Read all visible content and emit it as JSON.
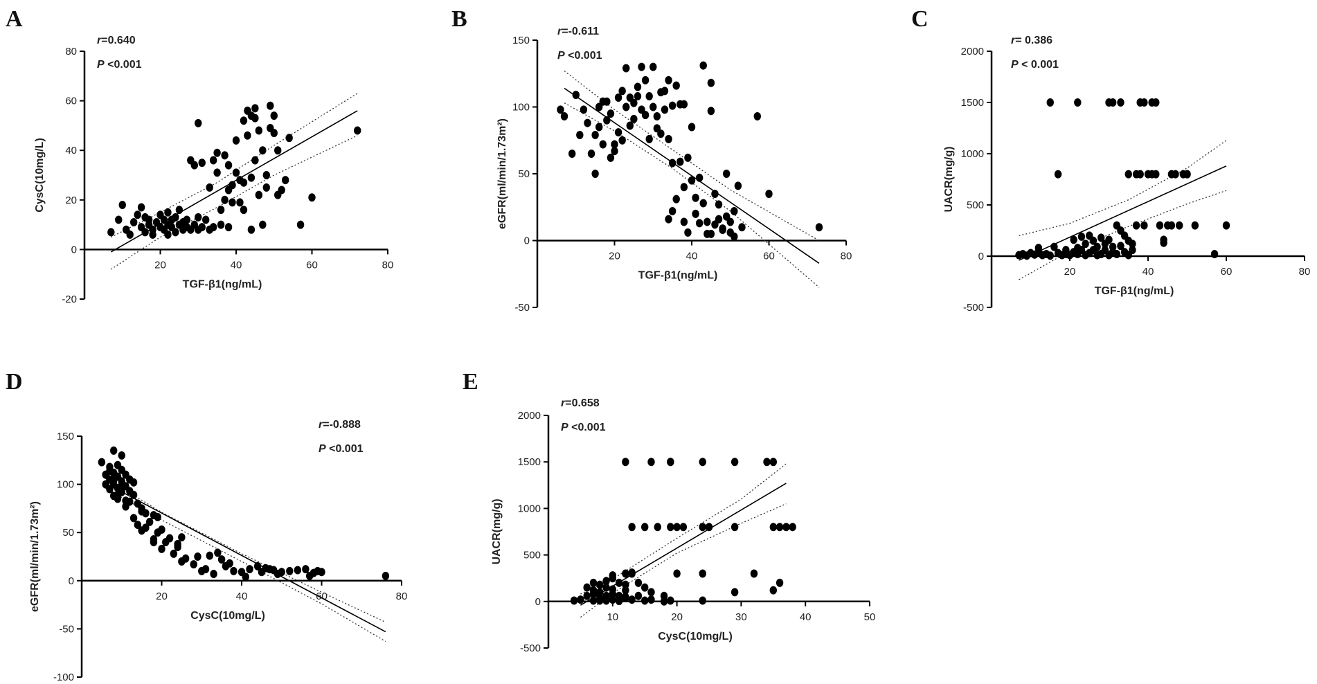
{
  "figure": {
    "panels": [
      "A",
      "B",
      "C",
      "D",
      "E"
    ]
  },
  "chart_data": [
    {
      "panel": "A",
      "type": "scatter",
      "xlabel": "TGF-β1(ng/mL)",
      "ylabel": "CysC(10mg/L)",
      "xlim": [
        0,
        80
      ],
      "ylim": [
        -20,
        80
      ],
      "xticks": [
        20,
        40,
        60,
        80
      ],
      "yticks": [
        -20,
        0,
        20,
        40,
        60,
        80
      ],
      "r_label": "r",
      "r_value": "=0.640",
      "p_label": "P",
      "p_value": " <0.001",
      "regression": {
        "x1": 7,
        "y1": -1,
        "x2": 72,
        "y2": 56
      },
      "ci_upper": [
        [
          7,
          5
        ],
        [
          20,
          15
        ],
        [
          35,
          27
        ],
        [
          50,
          42
        ],
        [
          72,
          63
        ]
      ],
      "ci_lower": [
        [
          7,
          -8
        ],
        [
          20,
          5
        ],
        [
          35,
          17
        ],
        [
          50,
          30
        ],
        [
          72,
          46
        ]
      ],
      "x": [
        7,
        9,
        10,
        11,
        12,
        13,
        14,
        15,
        15,
        16,
        16,
        17,
        17,
        18,
        18,
        19,
        20,
        20,
        21,
        21,
        22,
        22,
        22,
        23,
        23,
        24,
        24,
        25,
        25,
        26,
        26,
        27,
        27,
        28,
        28,
        29,
        29,
        30,
        30,
        31,
        31,
        32,
        33,
        33,
        34,
        34,
        35,
        35,
        36,
        36,
        37,
        37,
        38,
        38,
        38,
        39,
        39,
        40,
        40,
        41,
        41,
        42,
        42,
        42,
        43,
        43,
        44,
        44,
        44,
        45,
        45,
        46,
        46,
        47,
        47,
        48,
        48,
        49,
        49,
        50,
        50,
        51,
        51,
        52,
        53,
        54,
        57,
        60,
        72,
        30,
        45
      ],
      "y": [
        7,
        12,
        18,
        8,
        6,
        11,
        14,
        17,
        9,
        13,
        7,
        10,
        12,
        6,
        8,
        11,
        9,
        14,
        12,
        8,
        10,
        15,
        6,
        9,
        12,
        7,
        13,
        10,
        16,
        8,
        11,
        9,
        12,
        36,
        8,
        34,
        10,
        8,
        13,
        35,
        9,
        12,
        25,
        8,
        36,
        9,
        31,
        39,
        10,
        16,
        38,
        20,
        9,
        34,
        24,
        26,
        19,
        44,
        31,
        28,
        19,
        52,
        16,
        27,
        56,
        46,
        54,
        29,
        8,
        57,
        36,
        48,
        22,
        10,
        40,
        30,
        25,
        49,
        58,
        54,
        47,
        40,
        22,
        24,
        28,
        45,
        10,
        21,
        48,
        51,
        53
      ]
    },
    {
      "panel": "B",
      "type": "scatter",
      "xlabel": "TGF-β1(ng/mL)",
      "ylabel": "eGFR(ml/min/1.73m²)",
      "xlim": [
        0,
        80
      ],
      "ylim": [
        -50,
        150
      ],
      "xticks": [
        20,
        40,
        60,
        80
      ],
      "yticks": [
        -50,
        0,
        50,
        100,
        150
      ],
      "r_label": "r",
      "r_value": "=-0.611",
      "p_label": "P",
      "p_value": " <0.001",
      "regression": {
        "x1": 7,
        "y1": 114,
        "x2": 73,
        "y2": -17
      },
      "ci_upper": [
        [
          7,
          127
        ],
        [
          20,
          98
        ],
        [
          35,
          68
        ],
        [
          50,
          38
        ],
        [
          73,
          0
        ]
      ],
      "ci_lower": [
        [
          7,
          103
        ],
        [
          20,
          82
        ],
        [
          35,
          54
        ],
        [
          50,
          22
        ],
        [
          73,
          -35
        ]
      ],
      "x": [
        6,
        7,
        9,
        10,
        11,
        12,
        13,
        14,
        15,
        15,
        16,
        16,
        17,
        17,
        18,
        18,
        19,
        19,
        20,
        20,
        21,
        21,
        22,
        22,
        23,
        23,
        24,
        24,
        25,
        25,
        26,
        26,
        27,
        27,
        28,
        28,
        29,
        29,
        30,
        30,
        31,
        31,
        32,
        32,
        33,
        33,
        34,
        34,
        35,
        35,
        35,
        36,
        36,
        37,
        37,
        38,
        38,
        38,
        39,
        39,
        40,
        40,
        41,
        41,
        42,
        42,
        43,
        43,
        44,
        44,
        45,
        45,
        46,
        46,
        47,
        47,
        48,
        48,
        49,
        49,
        50,
        50,
        51,
        51,
        52,
        53,
        57,
        60,
        73,
        34,
        45
      ],
      "y": [
        98,
        93,
        65,
        109,
        79,
        98,
        88,
        65,
        50,
        79,
        100,
        85,
        72,
        104,
        90,
        104,
        95,
        62,
        67,
        72,
        81,
        107,
        112,
        75,
        100,
        129,
        107,
        86,
        91,
        103,
        108,
        115,
        130,
        98,
        94,
        120,
        108,
        76,
        100,
        130,
        93,
        84,
        111,
        80,
        98,
        112,
        76,
        120,
        58,
        22,
        101,
        116,
        31,
        102,
        59,
        102,
        14,
        40,
        62,
        6,
        45,
        85,
        20,
        32,
        13,
        47,
        28,
        131,
        14,
        5,
        97,
        118,
        35,
        12,
        16,
        27,
        9,
        8,
        18,
        50,
        6,
        14,
        22,
        3,
        41,
        10,
        93,
        35,
        10,
        16,
        5
      ]
    },
    {
      "panel": "C",
      "type": "scatter",
      "xlabel": "TGF-β1(ng/mL)",
      "ylabel": "UACR(mg/g)",
      "xlim": [
        0,
        80
      ],
      "ylim": [
        -500,
        2000
      ],
      "xticks": [
        20,
        40,
        60,
        80
      ],
      "yticks": [
        -500,
        0,
        500,
        1000,
        1500,
        2000
      ],
      "r_label": "r",
      "r_value": "= 0.386",
      "p_label": "P",
      "p_value": " < 0.001",
      "regression": {
        "x1": 7,
        "y1": -40,
        "x2": 60,
        "y2": 880
      },
      "ci_upper": [
        [
          7,
          200
        ],
        [
          20,
          320
        ],
        [
          35,
          550
        ],
        [
          50,
          860
        ],
        [
          60,
          1130
        ]
      ],
      "ci_lower": [
        [
          7,
          -230
        ],
        [
          20,
          50
        ],
        [
          35,
          290
        ],
        [
          50,
          510
        ],
        [
          60,
          640
        ]
      ],
      "x": [
        7,
        8,
        9,
        10,
        11,
        12,
        12,
        13,
        14,
        15,
        16,
        17,
        18,
        19,
        19,
        20,
        21,
        21,
        22,
        22,
        23,
        23,
        24,
        24,
        25,
        25,
        26,
        26,
        27,
        27,
        28,
        28,
        29,
        29,
        30,
        30,
        31,
        31,
        32,
        32,
        33,
        33,
        34,
        34,
        35,
        35,
        36,
        36,
        37,
        38,
        39,
        40,
        41,
        42,
        43,
        44,
        45,
        46,
        47,
        48,
        49,
        50,
        52,
        57,
        60,
        15,
        22,
        30,
        31,
        33,
        38,
        39,
        41,
        42,
        17,
        35,
        37,
        44,
        46,
        50
      ],
      "y": [
        10,
        20,
        5,
        30,
        15,
        80,
        40,
        10,
        20,
        5,
        90,
        30,
        10,
        20,
        60,
        10,
        160,
        40,
        80,
        20,
        190,
        60,
        10,
        120,
        200,
        30,
        60,
        150,
        10,
        90,
        20,
        180,
        60,
        120,
        10,
        160,
        40,
        90,
        20,
        300,
        250,
        100,
        40,
        200,
        150,
        10,
        120,
        60,
        300,
        800,
        300,
        800,
        800,
        800,
        300,
        130,
        300,
        300,
        800,
        300,
        800,
        800,
        300,
        20,
        300,
        1500,
        1500,
        1500,
        1500,
        1500,
        1500,
        1500,
        1500,
        1500,
        800,
        800,
        800,
        160,
        800,
        800
      ]
    },
    {
      "panel": "D",
      "type": "scatter",
      "xlabel": "CysC(10mg/L)",
      "ylabel": "eGFR(ml/min/1.73m²)",
      "xlim": [
        0,
        80
      ],
      "ylim": [
        -100,
        150
      ],
      "xticks": [
        20,
        40,
        60,
        80
      ],
      "yticks": [
        -100,
        -50,
        0,
        50,
        100,
        150
      ],
      "r_label": "r",
      "r_value": "=-0.888",
      "p_label": "P",
      "p_value": " <0.001",
      "regression": {
        "x1": 6,
        "y1": 101,
        "x2": 76,
        "y2": -53
      },
      "ci_upper": [
        [
          6,
          106
        ],
        [
          20,
          71
        ],
        [
          40,
          28
        ],
        [
          60,
          -12
        ],
        [
          76,
          -43
        ]
      ],
      "ci_lower": [
        [
          6,
          96
        ],
        [
          20,
          63
        ],
        [
          40,
          20
        ],
        [
          60,
          -24
        ],
        [
          76,
          -63
        ]
      ],
      "x": [
        5,
        6,
        6,
        7,
        7,
        7,
        8,
        8,
        8,
        8,
        9,
        9,
        9,
        9,
        10,
        10,
        10,
        10,
        11,
        11,
        11,
        12,
        12,
        12,
        13,
        13,
        14,
        14,
        15,
        15,
        16,
        16,
        17,
        18,
        18,
        19,
        19,
        20,
        20,
        21,
        22,
        23,
        24,
        25,
        25,
        26,
        28,
        29,
        30,
        32,
        33,
        35,
        36,
        37,
        38,
        40,
        42,
        44,
        46,
        48,
        50,
        52,
        54,
        56,
        57,
        58,
        59,
        60,
        76,
        7,
        8,
        9,
        10,
        11,
        13,
        15,
        18,
        24,
        31,
        34,
        41,
        45,
        47,
        49
      ],
      "y": [
        123,
        110,
        100,
        118,
        105,
        95,
        135,
        112,
        100,
        88,
        120,
        108,
        96,
        85,
        130,
        115,
        103,
        92,
        110,
        98,
        77,
        105,
        93,
        82,
        89,
        65,
        80,
        58,
        75,
        52,
        70,
        55,
        61,
        68,
        40,
        66,
        50,
        53,
        33,
        40,
        44,
        28,
        35,
        45,
        20,
        23,
        17,
        25,
        10,
        26,
        7,
        22,
        15,
        18,
        10,
        9,
        12,
        15,
        13,
        11,
        9,
        10,
        11,
        12,
        5,
        8,
        10,
        9,
        5,
        114,
        104,
        89,
        99,
        83,
        102,
        72,
        43,
        38,
        12,
        29,
        4,
        9,
        12,
        7
      ]
    },
    {
      "panel": "E",
      "type": "scatter",
      "xlabel": "CysC(10mg/L)",
      "ylabel": "UACR(mg/g)",
      "xlim": [
        0,
        50
      ],
      "ylim": [
        -500,
        2000
      ],
      "xticks": [
        10,
        20,
        30,
        40,
        50
      ],
      "yticks": [
        -500,
        0,
        500,
        1000,
        1500,
        2000
      ],
      "r_label": "r",
      "r_value": "=0.658",
      "p_label": "P",
      "p_value": " <0.001",
      "regression": {
        "x1": 5,
        "y1": -40,
        "x2": 37,
        "y2": 1270
      },
      "ci_upper": [
        [
          5,
          80
        ],
        [
          10,
          240
        ],
        [
          20,
          680
        ],
        [
          30,
          1100
        ],
        [
          37,
          1480
        ]
      ],
      "ci_lower": [
        [
          5,
          -170
        ],
        [
          10,
          90
        ],
        [
          20,
          520
        ],
        [
          30,
          840
        ],
        [
          37,
          1050
        ]
      ],
      "x": [
        4,
        5,
        6,
        6,
        7,
        7,
        7,
        7,
        8,
        8,
        8,
        8,
        9,
        9,
        9,
        9,
        10,
        10,
        10,
        10,
        11,
        11,
        11,
        12,
        12,
        12,
        13,
        13,
        14,
        14,
        15,
        15,
        16,
        8,
        9,
        11,
        12,
        16,
        18,
        19,
        24,
        29,
        35,
        36,
        13,
        17,
        19,
        21,
        24,
        25,
        29,
        35,
        36,
        37,
        38,
        10,
        12,
        13,
        20,
        24,
        32,
        12,
        15,
        16,
        19,
        19,
        20,
        24,
        29,
        34,
        35,
        18
      ],
      "y": [
        10,
        20,
        60,
        150,
        10,
        80,
        200,
        120,
        20,
        100,
        180,
        40,
        150,
        60,
        10,
        220,
        130,
        20,
        280,
        80,
        60,
        200,
        10,
        180,
        40,
        120,
        300,
        20,
        200,
        60,
        150,
        10,
        100,
        10,
        40,
        5,
        50,
        20,
        60,
        10,
        10,
        100,
        120,
        200,
        800,
        800,
        800,
        800,
        800,
        800,
        800,
        800,
        800,
        800,
        800,
        250,
        300,
        310,
        300,
        300,
        300,
        1500,
        800,
        1500,
        1500,
        1500,
        800,
        1500,
        1500,
        1500,
        1500,
        0
      ]
    }
  ]
}
